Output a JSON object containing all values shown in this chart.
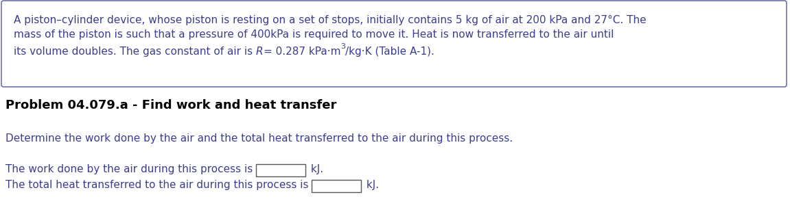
{
  "line1": "A piston–cylinder device, whose piston is resting on a set of stops, initially contains 5 kg of air at 200 kPa and 27°C. The",
  "line2": "mass of the piston is such that a pressure of 400kPa is required to move it. Heat is now transferred to the air until",
  "line3_prefix": "its volume doubles. The gas constant of air is ",
  "line3_R": "R",
  "line3_mid": "= 0.287 kPa·m",
  "line3_sup": "3",
  "line3_suffix": "/kg·K (Table A-1).",
  "section_title": "Problem 04.079.a - Find work and heat transfer",
  "instruction": "Determine the work done by the air and the total heat transferred to the air during this process.",
  "ans1_prefix": "The work done by the air during this process is",
  "ans2_prefix": "The total heat transferred to the air during this process is",
  "ans_suffix": "kJ.",
  "text_color": "#3d3d8f",
  "title_color": "#000000",
  "box_edge_color": "#7070b0",
  "bg_color": "#ffffff",
  "input_border_color": "#555555",
  "fs_main": 11.0,
  "fs_title": 13.0
}
